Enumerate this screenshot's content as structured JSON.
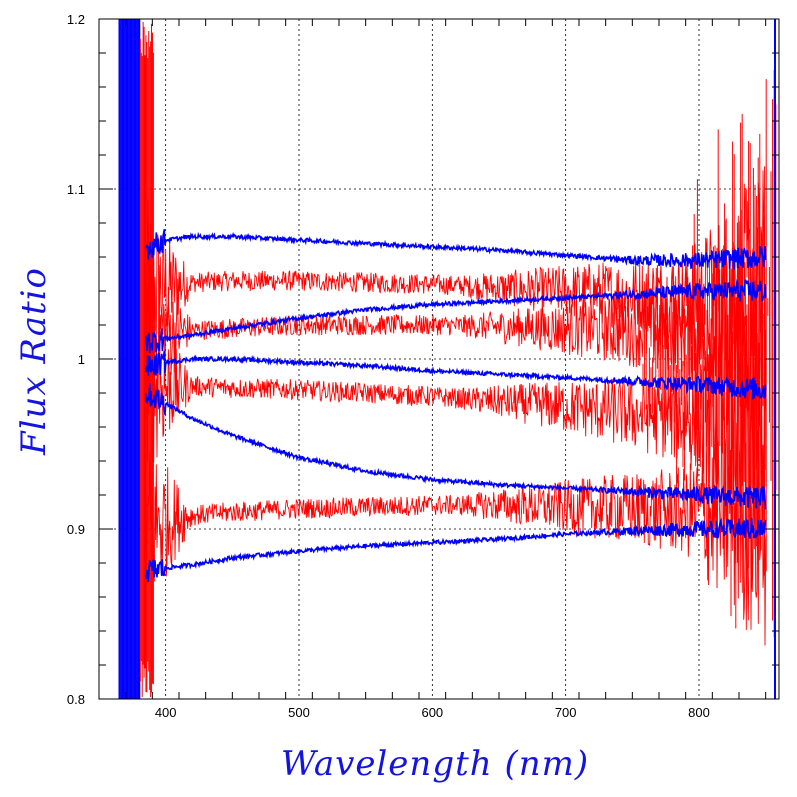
{
  "chart_data": {
    "type": "line",
    "title": "",
    "xlabel": "Wavelength (nm)",
    "ylabel": "Flux Ratio",
    "xlim": [
      350,
      860
    ],
    "ylim": [
      0.8,
      1.2
    ],
    "x_ticks": [
      400,
      500,
      600,
      700,
      800
    ],
    "x_tick_labels": [
      "400",
      "500",
      "600",
      "700",
      "800"
    ],
    "y_ticks": [
      0.8,
      0.9,
      1.0,
      1.1,
      1.2
    ],
    "y_tick_labels": [
      "0.8",
      "0.9",
      "1",
      "1.1",
      "1.2"
    ],
    "grid": "dotted at major ticks",
    "legend": "none",
    "label_color": "#1414e0",
    "colors": {
      "noisy": "#ff0000",
      "smooth": "#0000ff",
      "grid": "#000000"
    },
    "x": [
      385,
      400,
      420,
      450,
      500,
      550,
      600,
      650,
      700,
      750,
      800,
      850
    ],
    "series": [
      {
        "color": "#0000ff",
        "style": "smooth",
        "values": [
          1.065,
          1.07,
          1.072,
          1.072,
          1.07,
          1.068,
          1.066,
          1.064,
          1.061,
          1.058,
          1.058,
          1.06
        ]
      },
      {
        "color": "#0000ff",
        "style": "smooth",
        "values": [
          1.01,
          1.012,
          1.014,
          1.018,
          1.024,
          1.029,
          1.032,
          1.034,
          1.036,
          1.038,
          1.04,
          1.04
        ]
      },
      {
        "color": "#0000ff",
        "style": "smooth",
        "values": [
          0.995,
          0.998,
          1.0,
          1.0,
          0.998,
          0.996,
          0.993,
          0.991,
          0.989,
          0.987,
          0.985,
          0.982
        ]
      },
      {
        "color": "#0000ff",
        "style": "smooth",
        "values": [
          0.98,
          0.974,
          0.965,
          0.955,
          0.942,
          0.934,
          0.929,
          0.926,
          0.924,
          0.922,
          0.92,
          0.918
        ]
      },
      {
        "color": "#0000ff",
        "style": "smooth",
        "values": [
          0.875,
          0.877,
          0.879,
          0.883,
          0.887,
          0.89,
          0.892,
          0.894,
          0.897,
          0.899,
          0.9,
          0.9
        ]
      },
      {
        "color": "#ff0000",
        "style": "noisy",
        "values": [
          1.04,
          1.042,
          1.045,
          1.046,
          1.046,
          1.045,
          1.044,
          1.042,
          1.04,
          1.038,
          1.036,
          1.035
        ]
      },
      {
        "color": "#ff0000",
        "style": "noisy",
        "values": [
          1.015,
          1.016,
          1.017,
          1.018,
          1.02,
          1.02,
          1.02,
          1.019,
          1.018,
          1.017,
          1.016,
          1.015
        ]
      },
      {
        "color": "#ff0000",
        "style": "noisy",
        "values": [
          0.985,
          0.984,
          0.984,
          0.983,
          0.982,
          0.98,
          0.978,
          0.975,
          0.972,
          0.968,
          0.963,
          0.96
        ]
      },
      {
        "color": "#ff0000",
        "style": "noisy",
        "values": [
          0.9,
          0.905,
          0.908,
          0.91,
          0.912,
          0.913,
          0.914,
          0.914,
          0.913,
          0.912,
          0.91,
          0.908
        ]
      }
    ]
  }
}
